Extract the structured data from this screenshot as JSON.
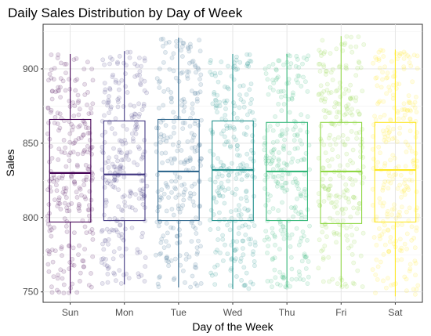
{
  "chart_data": {
    "type": "boxplot",
    "title": "Daily Sales Distribution by Day of Week",
    "xlabel": "Day of the Week",
    "ylabel": "Sales",
    "ylim": [
      743,
      930
    ],
    "yticks": [
      750,
      800,
      850,
      900
    ],
    "grid": true,
    "jitter_points": true,
    "categories": [
      "Sun",
      "Mon",
      "Tue",
      "Wed",
      "Thu",
      "Fri",
      "Sat"
    ],
    "colors": [
      "#440154",
      "#443a83",
      "#31688e",
      "#21908c",
      "#35b779",
      "#8fd744",
      "#fde725"
    ],
    "boxes": [
      {
        "category": "Sun",
        "min": 749,
        "q1": 797,
        "median": 830,
        "q3": 866,
        "max": 910
      },
      {
        "category": "Mon",
        "min": 755,
        "q1": 798,
        "median": 829,
        "q3": 865,
        "max": 912
      },
      {
        "category": "Tue",
        "min": 753,
        "q1": 798,
        "median": 831,
        "q3": 866,
        "max": 921
      },
      {
        "category": "Wed",
        "min": 752,
        "q1": 798,
        "median": 832,
        "q3": 865,
        "max": 910
      },
      {
        "category": "Thu",
        "min": 753,
        "q1": 798,
        "median": 831,
        "q3": 864,
        "max": 910
      },
      {
        "category": "Fri",
        "min": 753,
        "q1": 796,
        "median": 831,
        "q3": 864,
        "max": 922
      },
      {
        "category": "Sat",
        "min": 747,
        "q1": 797,
        "median": 832,
        "q3": 864,
        "max": 913
      }
    ]
  }
}
